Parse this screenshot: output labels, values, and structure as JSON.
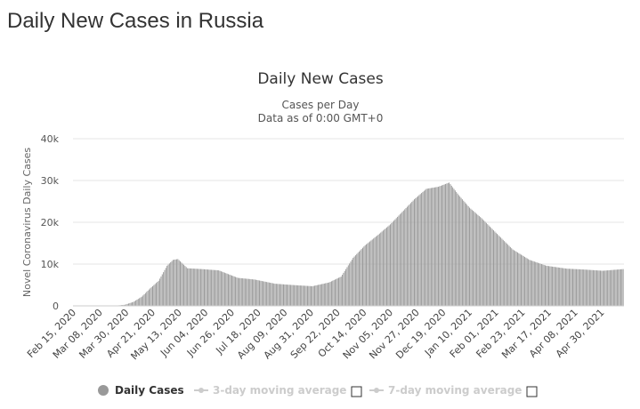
{
  "page": {
    "title": "Daily New Cases in Russia"
  },
  "chart_data": {
    "type": "bar",
    "title": "Daily New Cases",
    "subtitle_line1": "Cases per Day",
    "subtitle_line2": "Data as of 0:00 GMT+0",
    "ylabel": "Novel Coronavirus Daily Cases",
    "xlabel": "",
    "ylim": [
      0,
      40000
    ],
    "y_ticks": [
      {
        "value": 0,
        "label": "0"
      },
      {
        "value": 10000,
        "label": "10k"
      },
      {
        "value": 20000,
        "label": "20k"
      },
      {
        "value": 30000,
        "label": "30k"
      },
      {
        "value": 40000,
        "label": "40k"
      }
    ],
    "x_start": "2020-02-15",
    "x_end": "2021-05-18",
    "x_tick_labels": [
      "Feb 15, 2020",
      "Mar 08, 2020",
      "Mar 30, 2020",
      "Apr 21, 2020",
      "May 13, 2020",
      "Jun 04, 2020",
      "Jun 26, 2020",
      "Jul 18, 2020",
      "Aug 09, 2020",
      "Aug 31, 2020",
      "Sep 22, 2020",
      "Oct 14, 2020",
      "Nov 05, 2020",
      "Nov 27, 2020",
      "Dec 19, 2020",
      "Jan 10, 2021",
      "Feb 01, 2021",
      "Feb 23, 2021",
      "Mar 17, 2021",
      "Apr 08, 2021",
      "Apr 30, 2021"
    ],
    "grid": true,
    "legend_position": "bottom",
    "bar_color": "#999999",
    "series": [
      {
        "name": "Daily Cases",
        "points": [
          {
            "x": "2020-02-15",
            "y": 0
          },
          {
            "x": "2020-03-01",
            "y": 0
          },
          {
            "x": "2020-03-15",
            "y": 15
          },
          {
            "x": "2020-03-22",
            "y": 70
          },
          {
            "x": "2020-03-29",
            "y": 270
          },
          {
            "x": "2020-04-05",
            "y": 950
          },
          {
            "x": "2020-04-12",
            "y": 2200
          },
          {
            "x": "2020-04-19",
            "y": 4200
          },
          {
            "x": "2020-04-26",
            "y": 6000
          },
          {
            "x": "2020-05-03",
            "y": 9600
          },
          {
            "x": "2020-05-08",
            "y": 11000
          },
          {
            "x": "2020-05-12",
            "y": 11200
          },
          {
            "x": "2020-05-20",
            "y": 9000
          },
          {
            "x": "2020-06-01",
            "y": 8800
          },
          {
            "x": "2020-06-15",
            "y": 8500
          },
          {
            "x": "2020-07-01",
            "y": 6700
          },
          {
            "x": "2020-07-15",
            "y": 6300
          },
          {
            "x": "2020-08-01",
            "y": 5300
          },
          {
            "x": "2020-08-15",
            "y": 5000
          },
          {
            "x": "2020-09-01",
            "y": 4700
          },
          {
            "x": "2020-09-15",
            "y": 5600
          },
          {
            "x": "2020-09-25",
            "y": 7000
          },
          {
            "x": "2020-10-05",
            "y": 11500
          },
          {
            "x": "2020-10-15",
            "y": 14500
          },
          {
            "x": "2020-10-25",
            "y": 16800
          },
          {
            "x": "2020-11-05",
            "y": 19500
          },
          {
            "x": "2020-11-15",
            "y": 22500
          },
          {
            "x": "2020-11-25",
            "y": 25500
          },
          {
            "x": "2020-12-05",
            "y": 28000
          },
          {
            "x": "2020-12-15",
            "y": 28500
          },
          {
            "x": "2020-12-24",
            "y": 29500
          },
          {
            "x": "2021-01-01",
            "y": 26500
          },
          {
            "x": "2021-01-10",
            "y": 23500
          },
          {
            "x": "2021-01-20",
            "y": 21000
          },
          {
            "x": "2021-02-01",
            "y": 17500
          },
          {
            "x": "2021-02-15",
            "y": 13500
          },
          {
            "x": "2021-03-01",
            "y": 11000
          },
          {
            "x": "2021-03-15",
            "y": 9600
          },
          {
            "x": "2021-04-01",
            "y": 8900
          },
          {
            "x": "2021-04-15",
            "y": 8700
          },
          {
            "x": "2021-05-01",
            "y": 8400
          },
          {
            "x": "2021-05-18",
            "y": 8800
          }
        ]
      }
    ],
    "legend": [
      {
        "label": "Daily Cases",
        "color": "#999999",
        "active": true
      },
      {
        "label": "3-day moving average",
        "color": "#cccccc",
        "active": false
      },
      {
        "label": "7-day moving average",
        "color": "#cccccc",
        "active": false
      }
    ]
  }
}
